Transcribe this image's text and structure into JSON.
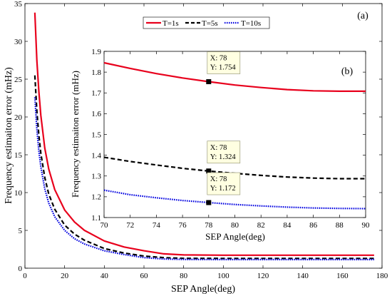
{
  "chart_data": [
    {
      "panel": "(a)",
      "type": "line",
      "xlabel": "SEP Angle(deg)",
      "ylabel": "Frequency estimaiton error (mHz)",
      "xlim": [
        0,
        180
      ],
      "ylim": [
        0,
        35
      ],
      "xticks": [
        0,
        20,
        40,
        60,
        80,
        100,
        120,
        140,
        160,
        180
      ],
      "yticks": [
        0,
        5,
        10,
        15,
        20,
        25,
        30,
        35
      ],
      "legend_position": "top-center",
      "series": [
        {
          "name": "T=1s",
          "color": "#e8001c",
          "style": "solid",
          "x": [
            5,
            6,
            7,
            8,
            10,
            12,
            15,
            20,
            25,
            30,
            40,
            50,
            60,
            70,
            80,
            100,
            120,
            140,
            160,
            176
          ],
          "y": [
            33.8,
            27.5,
            23.4,
            20.2,
            15.9,
            13.1,
            10.4,
            7.7,
            6.1,
            5.0,
            3.6,
            2.8,
            2.3,
            1.9,
            1.75,
            1.72,
            1.72,
            1.72,
            1.72,
            1.72
          ]
        },
        {
          "name": "T=5s",
          "color": "#000000",
          "style": "dashed",
          "x": [
            5,
            6,
            7,
            8,
            10,
            12,
            15,
            20,
            25,
            30,
            40,
            50,
            60,
            70,
            80,
            100,
            120,
            140,
            160,
            176
          ],
          "y": [
            25.5,
            20.8,
            17.6,
            15.2,
            12.0,
            9.8,
            7.8,
            5.7,
            4.5,
            3.7,
            2.6,
            2.0,
            1.6,
            1.4,
            1.3,
            1.29,
            1.29,
            1.29,
            1.29,
            1.29
          ]
        },
        {
          "name": "T=10s",
          "color": "#0000e0",
          "style": "dotted",
          "x": [
            5,
            6,
            7,
            8,
            10,
            12,
            15,
            20,
            25,
            30,
            40,
            50,
            60,
            70,
            80,
            100,
            120,
            140,
            160,
            176
          ],
          "y": [
            22.6,
            18.4,
            15.5,
            13.4,
            10.5,
            8.6,
            6.8,
            5.0,
            3.9,
            3.2,
            2.3,
            1.8,
            1.4,
            1.22,
            1.16,
            1.14,
            1.14,
            1.14,
            1.14,
            1.14
          ]
        }
      ]
    },
    {
      "panel": "(b)",
      "type": "line",
      "xlabel": "SEP Angle(deg)",
      "ylabel": "Frequency estimaiton error (mHz)",
      "xlim": [
        70,
        90
      ],
      "ylim": [
        1.1,
        1.9
      ],
      "xticks": [
        70,
        72,
        74,
        76,
        78,
        80,
        82,
        84,
        86,
        88,
        90
      ],
      "yticks": [
        1.1,
        1.2,
        1.3,
        1.4,
        1.5,
        1.6,
        1.7,
        1.8,
        1.9
      ],
      "series": [
        {
          "name": "T=1s",
          "color": "#e8001c",
          "style": "solid",
          "x": [
            70,
            72,
            74,
            76,
            78,
            80,
            82,
            84,
            86,
            88,
            90
          ],
          "y": [
            1.845,
            1.818,
            1.793,
            1.772,
            1.754,
            1.738,
            1.726,
            1.716,
            1.71,
            1.708,
            1.708
          ]
        },
        {
          "name": "T=5s",
          "color": "#000000",
          "style": "dashed",
          "x": [
            70,
            72,
            74,
            76,
            78,
            80,
            82,
            84,
            86,
            88,
            90
          ],
          "y": [
            1.39,
            1.37,
            1.353,
            1.337,
            1.324,
            1.313,
            1.303,
            1.295,
            1.29,
            1.287,
            1.287
          ]
        },
        {
          "name": "T=10s",
          "color": "#0000e0",
          "style": "dotted",
          "x": [
            70,
            72,
            74,
            76,
            78,
            80,
            82,
            84,
            86,
            88,
            90
          ],
          "y": [
            1.232,
            1.21,
            1.195,
            1.182,
            1.172,
            1.163,
            1.156,
            1.15,
            1.146,
            1.144,
            1.143
          ]
        }
      ],
      "datatips": [
        {
          "x": 78,
          "y": 1.754,
          "text_x": "X: 78",
          "text_y": "Y: 1.754"
        },
        {
          "x": 78,
          "y": 1.324,
          "text_x": "X: 78",
          "text_y": "Y: 1.324"
        },
        {
          "x": 78,
          "y": 1.172,
          "text_x": "X: 78",
          "text_y": "Y: 1.172"
        }
      ]
    }
  ]
}
